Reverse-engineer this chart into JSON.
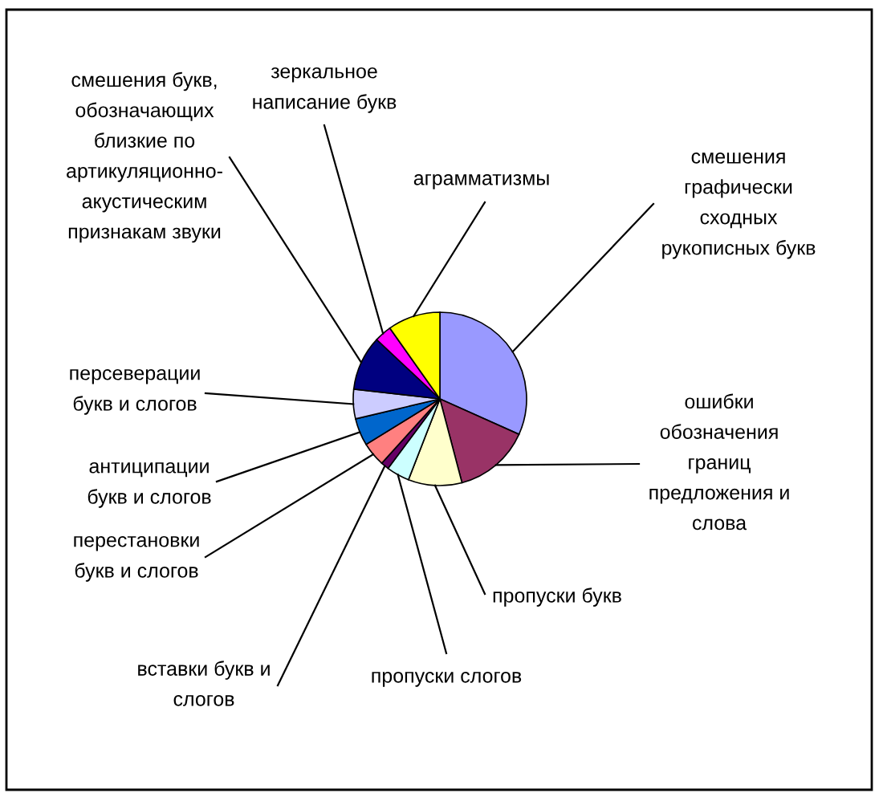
{
  "chart_data": {
    "type": "pie",
    "categories": [
      "смешения\nграфически\nсходных\nрукописных букв",
      "ошибки\nобозначения\nграниц\nпредложения и\nслова",
      "пропуски букв",
      "пропуски слогов",
      "вставки букв и\nслогов",
      "перестановки\nбукв и слогов",
      "антиципации\nбукв и слогов",
      "персеверации\nбукв и слогов",
      "смешения букв,\nобозначающих\nблизкие по\nартикуляционно-\nакустическим\nпризнакам звуки",
      "зеркальное\nнаписание букв",
      "аграмматизмы"
    ],
    "values": [
      31.7,
      14.2,
      10.0,
      4.3,
      1.5,
      4.5,
      5.1,
      5.5,
      10.2,
      3.2,
      9.8
    ],
    "colors": [
      "#9999ff",
      "#993366",
      "#ffffcc",
      "#ccffff",
      "#660066",
      "#ff8080",
      "#0066cc",
      "#ccccff",
      "#000080",
      "#ff00ff",
      "#ffff00"
    ]
  }
}
